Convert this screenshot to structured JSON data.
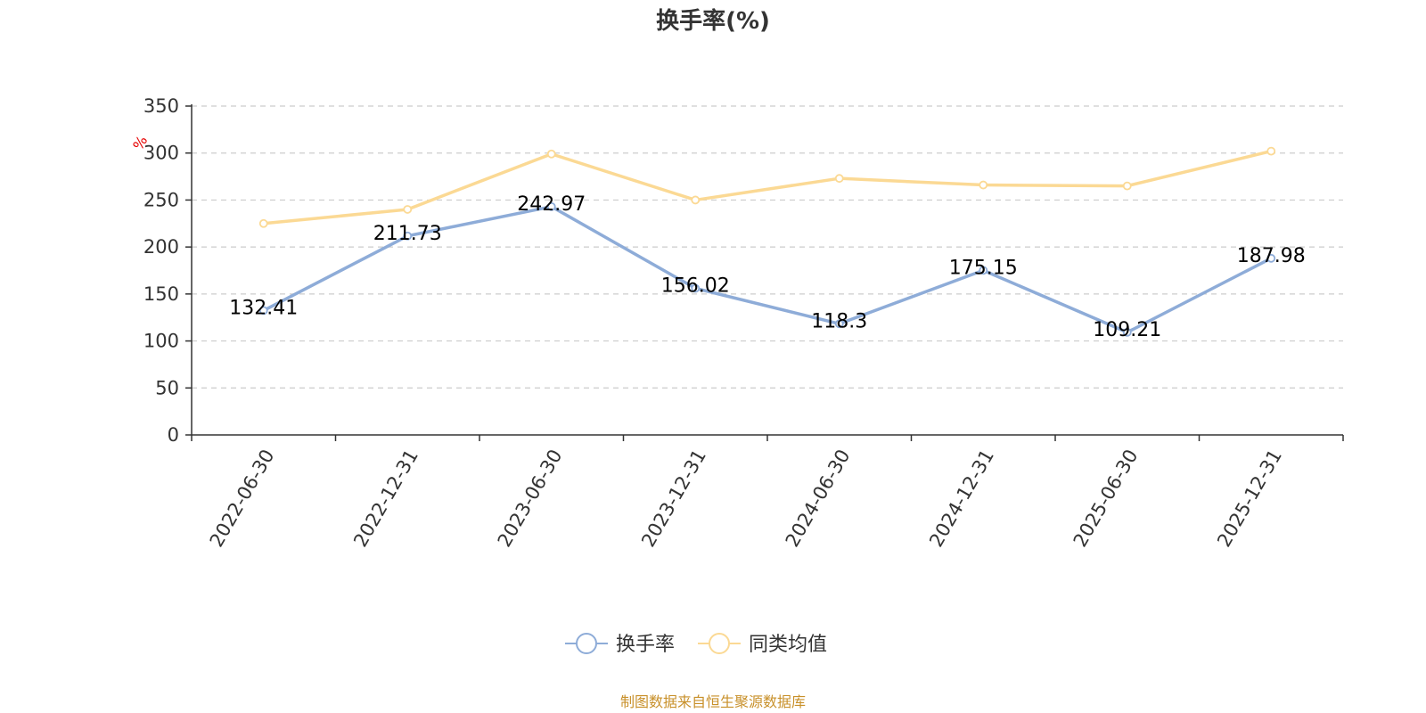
{
  "chart_data": {
    "type": "line",
    "title": "换手率(%)",
    "ylabel": "%",
    "xlabel": "",
    "ylim": [
      0,
      350
    ],
    "yticks": [
      0,
      50,
      100,
      150,
      200,
      250,
      300,
      350
    ],
    "grid": true,
    "legend_position": "bottom-center",
    "categories": [
      "2022-06-30",
      "2022-12-31",
      "2023-06-30",
      "2023-12-31",
      "2024-06-30",
      "2024-12-31",
      "2025-06-30",
      "2025-12-31"
    ],
    "series": [
      {
        "name": "换手率",
        "color": "#8eacd8",
        "show_labels": true,
        "values": [
          132.41,
          211.73,
          242.97,
          156.02,
          118.3,
          175.15,
          109.21,
          187.98
        ]
      },
      {
        "name": "同类均值",
        "color": "#fbd994",
        "show_labels": false,
        "values": [
          225,
          240,
          299,
          250,
          273,
          266,
          265,
          302
        ]
      }
    ]
  },
  "source_note": "制图数据来自恒生聚源数据库"
}
